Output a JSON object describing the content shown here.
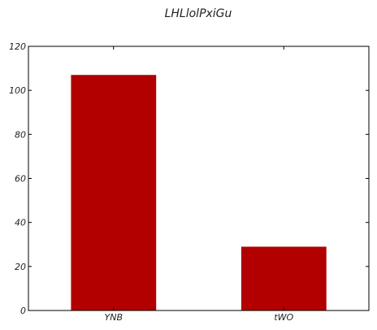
{
  "chart_data": {
    "type": "bar",
    "title": "LHLlolPxiGu",
    "categories": [
      "YNB",
      "tWO"
    ],
    "values": [
      107,
      29
    ],
    "ylim": [
      0,
      120
    ],
    "yticks": [
      0,
      20,
      40,
      60,
      80,
      100,
      120
    ],
    "grid": false,
    "bar_color": "#b20000"
  }
}
